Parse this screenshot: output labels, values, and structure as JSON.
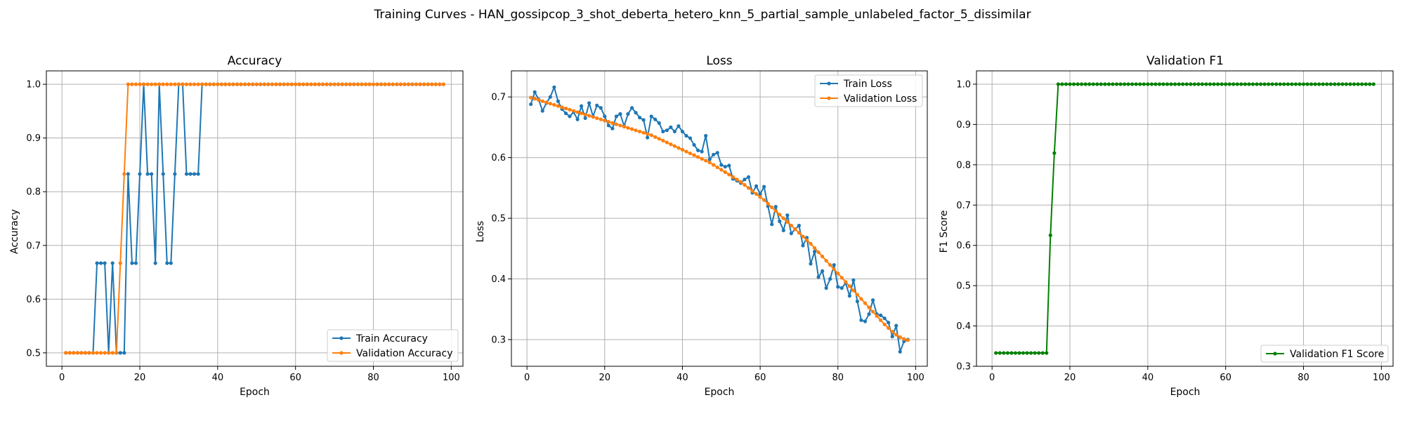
{
  "figure": {
    "title": "Training Curves - HAN_gossipcop_3_shot_deberta_hetero_knn_5_partial_sample_unlabeled_factor_5_dissimilar"
  },
  "colors": {
    "train": "#1f77b4",
    "validation": "#ff7f0e",
    "f1": "#008000",
    "grid": "#b0b0b0",
    "axes": "#000000"
  },
  "chart_data": [
    {
      "type": "line",
      "title": "Accuracy",
      "xlabel": "Epoch",
      "ylabel": "Accuracy",
      "xlim": [
        -4,
        103
      ],
      "ylim": [
        0.475,
        1.025
      ],
      "xticks": [
        0,
        20,
        40,
        60,
        80,
        100
      ],
      "yticks": [
        0.5,
        0.6,
        0.7,
        0.8,
        0.9,
        1.0
      ],
      "ytick_labels": [
        "0.5",
        "0.6",
        "0.7",
        "0.8",
        "0.9",
        "1.0"
      ],
      "grid": true,
      "legend_position": "lower-right",
      "series": [
        {
          "name": "Train Accuracy",
          "color": "#1f77b4",
          "x": [
            1,
            2,
            3,
            4,
            5,
            6,
            7,
            8,
            9,
            10,
            11,
            12,
            13,
            14,
            15,
            16,
            17,
            18,
            19,
            20,
            21,
            22,
            23,
            24,
            25,
            26,
            27,
            28,
            29,
            30,
            31,
            32,
            33,
            34,
            35,
            36,
            37,
            38,
            39,
            40,
            41,
            42,
            43,
            44,
            45,
            46,
            47,
            48,
            49,
            50,
            51,
            52,
            53,
            54,
            55,
            56,
            57,
            58,
            59,
            60,
            61,
            62,
            63,
            64,
            65,
            66,
            67,
            68,
            69,
            70,
            71,
            72,
            73,
            74,
            75,
            76,
            77,
            78,
            79,
            80,
            81,
            82,
            83,
            84,
            85,
            86,
            87,
            88,
            89,
            90,
            91,
            92,
            93,
            94,
            95,
            96,
            97,
            98
          ],
          "y": [
            0.5,
            0.5,
            0.5,
            0.5,
            0.5,
            0.5,
            0.5,
            0.5,
            0.667,
            0.667,
            0.667,
            0.5,
            0.667,
            0.5,
            0.5,
            0.5,
            0.833,
            0.667,
            0.667,
            0.833,
            1.0,
            0.833,
            0.833,
            0.667,
            1.0,
            0.833,
            0.667,
            0.667,
            0.833,
            1.0,
            1.0,
            0.833,
            0.833,
            0.833,
            0.833,
            1.0,
            1.0,
            1.0,
            1.0,
            1.0,
            1.0,
            1.0,
            1.0,
            1.0,
            1.0,
            1.0,
            1.0,
            1.0,
            1.0,
            1.0,
            1.0,
            1.0,
            1.0,
            1.0,
            1.0,
            1.0,
            1.0,
            1.0,
            1.0,
            1.0,
            1.0,
            1.0,
            1.0,
            1.0,
            1.0,
            1.0,
            1.0,
            1.0,
            1.0,
            1.0,
            1.0,
            1.0,
            1.0,
            1.0,
            1.0,
            1.0,
            1.0,
            1.0,
            1.0,
            1.0,
            1.0,
            1.0,
            1.0,
            1.0,
            1.0,
            1.0,
            1.0,
            1.0,
            1.0,
            1.0,
            1.0,
            1.0,
            1.0,
            1.0,
            1.0,
            1.0,
            1.0,
            1.0
          ]
        },
        {
          "name": "Validation Accuracy",
          "color": "#ff7f0e",
          "x": [
            1,
            2,
            3,
            4,
            5,
            6,
            7,
            8,
            9,
            10,
            11,
            12,
            13,
            14,
            15,
            16,
            17,
            18,
            19,
            20,
            21,
            22,
            23,
            24,
            25,
            26,
            27,
            28,
            29,
            30,
            31,
            32,
            33,
            34,
            35,
            36,
            37,
            38,
            39,
            40,
            41,
            42,
            43,
            44,
            45,
            46,
            47,
            48,
            49,
            50,
            51,
            52,
            53,
            54,
            55,
            56,
            57,
            58,
            59,
            60,
            61,
            62,
            63,
            64,
            65,
            66,
            67,
            68,
            69,
            70,
            71,
            72,
            73,
            74,
            75,
            76,
            77,
            78,
            79,
            80,
            81,
            82,
            83,
            84,
            85,
            86,
            87,
            88,
            89,
            90,
            91,
            92,
            93,
            94,
            95,
            96,
            97,
            98
          ],
          "y": [
            0.5,
            0.5,
            0.5,
            0.5,
            0.5,
            0.5,
            0.5,
            0.5,
            0.5,
            0.5,
            0.5,
            0.5,
            0.5,
            0.5,
            0.667,
            0.833,
            1.0,
            1.0,
            1.0,
            1.0,
            1.0,
            1.0,
            1.0,
            1.0,
            1.0,
            1.0,
            1.0,
            1.0,
            1.0,
            1.0,
            1.0,
            1.0,
            1.0,
            1.0,
            1.0,
            1.0,
            1.0,
            1.0,
            1.0,
            1.0,
            1.0,
            1.0,
            1.0,
            1.0,
            1.0,
            1.0,
            1.0,
            1.0,
            1.0,
            1.0,
            1.0,
            1.0,
            1.0,
            1.0,
            1.0,
            1.0,
            1.0,
            1.0,
            1.0,
            1.0,
            1.0,
            1.0,
            1.0,
            1.0,
            1.0,
            1.0,
            1.0,
            1.0,
            1.0,
            1.0,
            1.0,
            1.0,
            1.0,
            1.0,
            1.0,
            1.0,
            1.0,
            1.0,
            1.0,
            1.0,
            1.0,
            1.0,
            1.0,
            1.0,
            1.0,
            1.0,
            1.0,
            1.0,
            1.0,
            1.0,
            1.0,
            1.0,
            1.0,
            1.0,
            1.0,
            1.0,
            1.0,
            1.0
          ]
        }
      ]
    },
    {
      "type": "line",
      "title": "Loss",
      "xlabel": "Epoch",
      "ylabel": "Loss",
      "xlim": [
        -4,
        103
      ],
      "ylim": [
        0.256,
        0.743
      ],
      "xticks": [
        0,
        20,
        40,
        60,
        80,
        100
      ],
      "yticks": [
        0.3,
        0.4,
        0.5,
        0.6,
        0.7
      ],
      "ytick_labels": [
        "0.3",
        "0.4",
        "0.5",
        "0.6",
        "0.7"
      ],
      "grid": true,
      "legend_position": "upper-right",
      "series": [
        {
          "name": "Train Loss",
          "color": "#1f77b4",
          "x": [
            1,
            2,
            3,
            4,
            5,
            6,
            7,
            8,
            9,
            10,
            11,
            12,
            13,
            14,
            15,
            16,
            17,
            18,
            19,
            20,
            21,
            22,
            23,
            24,
            25,
            26,
            27,
            28,
            29,
            30,
            31,
            32,
            33,
            34,
            35,
            36,
            37,
            38,
            39,
            40,
            41,
            42,
            43,
            44,
            45,
            46,
            47,
            48,
            49,
            50,
            51,
            52,
            53,
            54,
            55,
            56,
            57,
            58,
            59,
            60,
            61,
            62,
            63,
            64,
            65,
            66,
            67,
            68,
            69,
            70,
            71,
            72,
            73,
            74,
            75,
            76,
            77,
            78,
            79,
            80,
            81,
            82,
            83,
            84,
            85,
            86,
            87,
            88,
            89,
            90,
            91,
            92,
            93,
            94,
            95,
            96,
            97,
            98
          ],
          "y": [
            0.688,
            0.708,
            0.696,
            0.677,
            0.69,
            0.7,
            0.716,
            0.693,
            0.68,
            0.673,
            0.668,
            0.675,
            0.663,
            0.685,
            0.665,
            0.69,
            0.668,
            0.686,
            0.682,
            0.668,
            0.653,
            0.648,
            0.668,
            0.672,
            0.652,
            0.672,
            0.682,
            0.674,
            0.666,
            0.662,
            0.633,
            0.668,
            0.663,
            0.657,
            0.643,
            0.645,
            0.65,
            0.643,
            0.652,
            0.643,
            0.636,
            0.632,
            0.621,
            0.612,
            0.61,
            0.636,
            0.597,
            0.605,
            0.608,
            0.588,
            0.585,
            0.587,
            0.565,
            0.562,
            0.558,
            0.564,
            0.568,
            0.542,
            0.553,
            0.54,
            0.552,
            0.52,
            0.49,
            0.519,
            0.495,
            0.48,
            0.505,
            0.475,
            0.482,
            0.488,
            0.455,
            0.468,
            0.425,
            0.445,
            0.403,
            0.413,
            0.385,
            0.4,
            0.423,
            0.387,
            0.385,
            0.393,
            0.372,
            0.398,
            0.363,
            0.332,
            0.33,
            0.342,
            0.365,
            0.342,
            0.34,
            0.335,
            0.328,
            0.305,
            0.323,
            0.28,
            0.297,
            0.3
          ]
        },
        {
          "name": "Validation Loss",
          "color": "#ff7f0e",
          "x": [
            1,
            2,
            3,
            4,
            5,
            6,
            7,
            8,
            9,
            10,
            11,
            12,
            13,
            14,
            15,
            16,
            17,
            18,
            19,
            20,
            21,
            22,
            23,
            24,
            25,
            26,
            27,
            28,
            29,
            30,
            31,
            32,
            33,
            34,
            35,
            36,
            37,
            38,
            39,
            40,
            41,
            42,
            43,
            44,
            45,
            46,
            47,
            48,
            49,
            50,
            51,
            52,
            53,
            54,
            55,
            56,
            57,
            58,
            59,
            60,
            61,
            62,
            63,
            64,
            65,
            66,
            67,
            68,
            69,
            70,
            71,
            72,
            73,
            74,
            75,
            76,
            77,
            78,
            79,
            80,
            81,
            82,
            83,
            84,
            85,
            86,
            87,
            88,
            89,
            90,
            91,
            92,
            93,
            94,
            95,
            96,
            97,
            98
          ],
          "y": [
            0.699,
            0.697,
            0.695,
            0.693,
            0.691,
            0.689,
            0.687,
            0.685,
            0.683,
            0.681,
            0.679,
            0.677,
            0.675,
            0.673,
            0.671,
            0.669,
            0.667,
            0.665,
            0.663,
            0.661,
            0.659,
            0.657,
            0.655,
            0.653,
            0.651,
            0.649,
            0.647,
            0.645,
            0.643,
            0.641,
            0.639,
            0.637,
            0.634,
            0.631,
            0.628,
            0.625,
            0.622,
            0.619,
            0.616,
            0.613,
            0.61,
            0.607,
            0.604,
            0.601,
            0.598,
            0.595,
            0.592,
            0.588,
            0.584,
            0.58,
            0.576,
            0.572,
            0.568,
            0.564,
            0.56,
            0.555,
            0.55,
            0.545,
            0.54,
            0.535,
            0.53,
            0.524,
            0.518,
            0.512,
            0.506,
            0.5,
            0.494,
            0.488,
            0.482,
            0.476,
            0.47,
            0.464,
            0.458,
            0.451,
            0.444,
            0.437,
            0.43,
            0.423,
            0.416,
            0.409,
            0.402,
            0.395,
            0.388,
            0.381,
            0.374,
            0.367,
            0.36,
            0.353,
            0.346,
            0.339,
            0.332,
            0.325,
            0.319,
            0.313,
            0.308,
            0.304,
            0.301,
            0.299
          ]
        }
      ]
    },
    {
      "type": "line",
      "title": "Validation F1",
      "xlabel": "Epoch",
      "ylabel": "F1 Score",
      "xlim": [
        -4,
        103
      ],
      "ylim": [
        0.3,
        1.033
      ],
      "xticks": [
        0,
        20,
        40,
        60,
        80,
        100
      ],
      "yticks": [
        0.3,
        0.4,
        0.5,
        0.6,
        0.7,
        0.8,
        0.9,
        1.0
      ],
      "ytick_labels": [
        "0.3",
        "0.4",
        "0.5",
        "0.6",
        "0.7",
        "0.8",
        "0.9",
        "1.0"
      ],
      "grid": true,
      "legend_position": "lower-right",
      "series": [
        {
          "name": "Validation F1 Score",
          "color": "#008000",
          "x": [
            1,
            2,
            3,
            4,
            5,
            6,
            7,
            8,
            9,
            10,
            11,
            12,
            13,
            14,
            15,
            16,
            17,
            18,
            19,
            20,
            21,
            22,
            23,
            24,
            25,
            26,
            27,
            28,
            29,
            30,
            31,
            32,
            33,
            34,
            35,
            36,
            37,
            38,
            39,
            40,
            41,
            42,
            43,
            44,
            45,
            46,
            47,
            48,
            49,
            50,
            51,
            52,
            53,
            54,
            55,
            56,
            57,
            58,
            59,
            60,
            61,
            62,
            63,
            64,
            65,
            66,
            67,
            68,
            69,
            70,
            71,
            72,
            73,
            74,
            75,
            76,
            77,
            78,
            79,
            80,
            81,
            82,
            83,
            84,
            85,
            86,
            87,
            88,
            89,
            90,
            91,
            92,
            93,
            94,
            95,
            96,
            97,
            98
          ],
          "y": [
            0.333,
            0.333,
            0.333,
            0.333,
            0.333,
            0.333,
            0.333,
            0.333,
            0.333,
            0.333,
            0.333,
            0.333,
            0.333,
            0.333,
            0.625,
            0.829,
            1.0,
            1.0,
            1.0,
            1.0,
            1.0,
            1.0,
            1.0,
            1.0,
            1.0,
            1.0,
            1.0,
            1.0,
            1.0,
            1.0,
            1.0,
            1.0,
            1.0,
            1.0,
            1.0,
            1.0,
            1.0,
            1.0,
            1.0,
            1.0,
            1.0,
            1.0,
            1.0,
            1.0,
            1.0,
            1.0,
            1.0,
            1.0,
            1.0,
            1.0,
            1.0,
            1.0,
            1.0,
            1.0,
            1.0,
            1.0,
            1.0,
            1.0,
            1.0,
            1.0,
            1.0,
            1.0,
            1.0,
            1.0,
            1.0,
            1.0,
            1.0,
            1.0,
            1.0,
            1.0,
            1.0,
            1.0,
            1.0,
            1.0,
            1.0,
            1.0,
            1.0,
            1.0,
            1.0,
            1.0,
            1.0,
            1.0,
            1.0,
            1.0,
            1.0,
            1.0,
            1.0,
            1.0,
            1.0,
            1.0,
            1.0,
            1.0,
            1.0,
            1.0,
            1.0,
            1.0,
            1.0,
            1.0
          ]
        }
      ]
    }
  ]
}
